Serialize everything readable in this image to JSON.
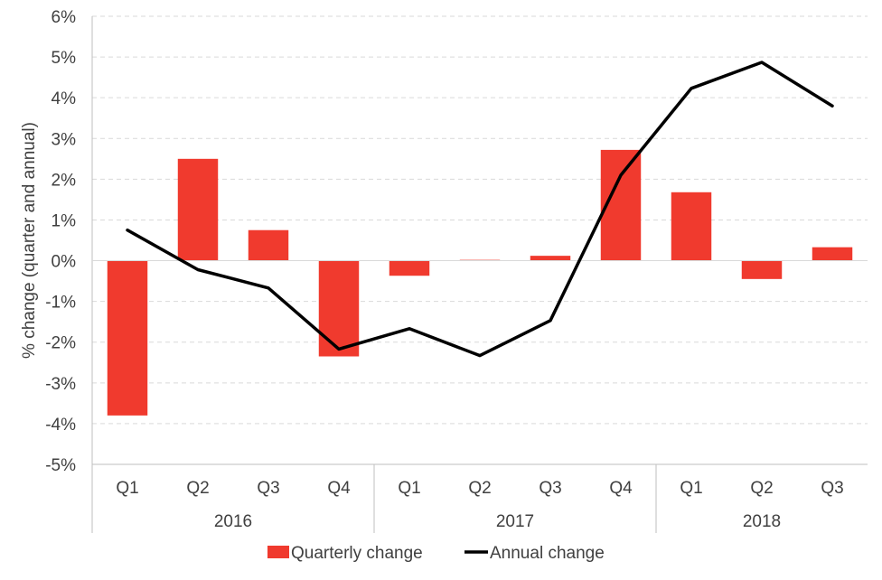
{
  "chart_data": {
    "type": "bar",
    "ylabel": "% change (quarter and annual)",
    "yticks": [
      "6%",
      "5%",
      "4%",
      "3%",
      "2%",
      "1%",
      "0%",
      "-1%",
      "-2%",
      "-3%",
      "-4%",
      "-5%"
    ],
    "ylim": [
      -5,
      6
    ],
    "grid": true,
    "legend_position": "bottom",
    "categories": [
      "Q1",
      "Q2",
      "Q3",
      "Q4",
      "Q1",
      "Q2",
      "Q3",
      "Q4",
      "Q1",
      "Q2",
      "Q3"
    ],
    "groups": [
      {
        "label": "2016",
        "count": 4
      },
      {
        "label": "2017",
        "count": 4
      },
      {
        "label": "2018",
        "count": 3
      }
    ],
    "series": [
      {
        "name": "Quarterly change",
        "type": "bar",
        "color": "#f03a2e",
        "values": [
          -3.8,
          2.5,
          0.75,
          -2.35,
          -0.37,
          0.02,
          0.12,
          2.72,
          1.68,
          -0.45,
          0.33
        ]
      },
      {
        "name": "Annual change",
        "type": "line",
        "color": "#000000",
        "values": [
          0.75,
          -0.22,
          -0.67,
          -2.17,
          -1.67,
          -2.33,
          -1.47,
          2.1,
          4.23,
          4.87,
          3.8
        ]
      }
    ]
  }
}
